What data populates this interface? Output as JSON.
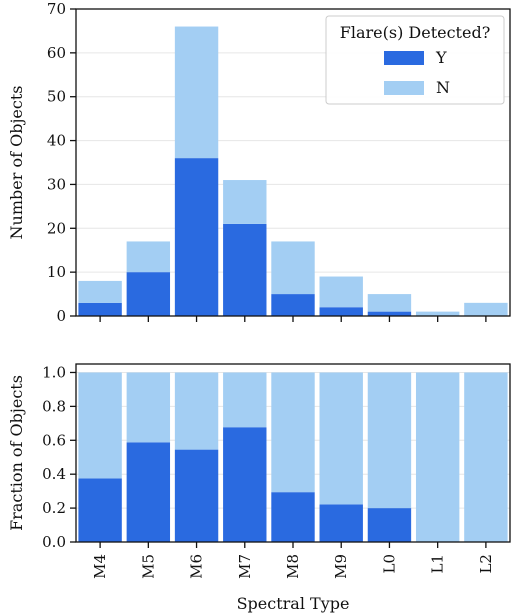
{
  "colors": {
    "detected": "#2a6ae0",
    "not_detected": "#a3cef3",
    "axis": "#111111",
    "grid": "#e6e6e6"
  },
  "chart_data": [
    {
      "type": "bar",
      "stacked": true,
      "categories": [
        "M4",
        "M5",
        "M6",
        "M7",
        "M8",
        "M9",
        "L0",
        "L1",
        "L2"
      ],
      "series": [
        {
          "name": "Y",
          "values": [
            3,
            10,
            36,
            21,
            5,
            2,
            1,
            0,
            0
          ]
        },
        {
          "name": "N",
          "values": [
            5,
            7,
            30,
            10,
            12,
            7,
            4,
            1,
            3
          ]
        }
      ],
      "ylabel": "Number of Objects",
      "ylim": [
        0,
        70
      ],
      "yticks": [
        "0",
        "10",
        "20",
        "30",
        "40",
        "50",
        "60",
        "70"
      ],
      "grid": "horizontal",
      "legend": {
        "title": "Flare(s) Detected?",
        "entries": [
          "Y",
          "N"
        ],
        "placement": "top-right"
      }
    },
    {
      "type": "bar",
      "stacked": true,
      "categories": [
        "M4",
        "M5",
        "M6",
        "M7",
        "M8",
        "M9",
        "L0",
        "L1",
        "L2"
      ],
      "series": [
        {
          "name": "Y",
          "values": [
            0.375,
            0.588,
            0.545,
            0.677,
            0.294,
            0.222,
            0.2,
            0,
            0
          ]
        },
        {
          "name": "N",
          "values": [
            0.625,
            0.412,
            0.455,
            0.323,
            0.706,
            0.778,
            0.8,
            1,
            1
          ]
        }
      ],
      "xlabel": "Spectral Type",
      "ylabel": "Fraction of Objects",
      "ylim": [
        0,
        1.05
      ],
      "yticks": [
        "0.0",
        "0.2",
        "0.4",
        "0.6",
        "0.8",
        "1.0"
      ],
      "grid": "horizontal"
    }
  ]
}
